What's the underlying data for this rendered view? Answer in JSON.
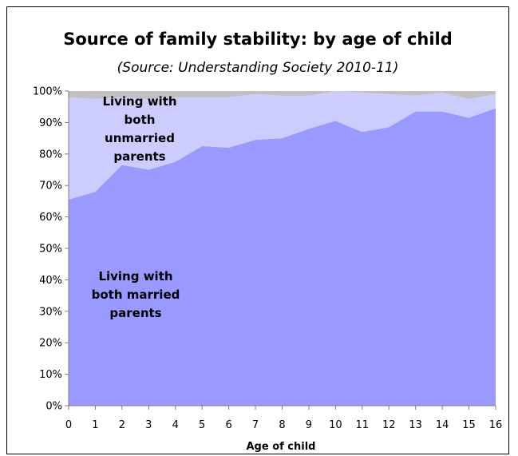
{
  "chart_data": {
    "type": "area",
    "stacked": true,
    "title": "Source of family stability: by age of child",
    "subtitle": "(Source: Understanding Society 2010-11)",
    "xlabel": "Age of child",
    "ylabel": "",
    "x": [
      0,
      1,
      2,
      3,
      4,
      5,
      6,
      7,
      8,
      9,
      10,
      11,
      12,
      13,
      14,
      15,
      16
    ],
    "ylim": [
      0,
      100
    ],
    "yticks": [
      "0%",
      "10%",
      "20%",
      "30%",
      "40%",
      "50%",
      "60%",
      "70%",
      "80%",
      "90%",
      "100%"
    ],
    "series": [
      {
        "values": [
          65.5,
          68,
          76.5,
          75,
          77.5,
          82.5,
          82,
          84.5,
          85,
          88,
          90.5,
          87,
          88.5,
          93.5,
          93.5,
          91.5,
          94.5
        ],
        "color": "#9999ff"
      },
      {
        "values": [
          32.5,
          29.5,
          21.5,
          22.5,
          20.5,
          15.5,
          16,
          14.5,
          13.5,
          10.5,
          9.5,
          12.5,
          10.5,
          5,
          6,
          6,
          4.5
        ],
        "color": "#ccccff"
      },
      {
        "values": [
          2,
          2.5,
          2,
          2.5,
          2,
          2,
          2,
          1,
          1.5,
          1.5,
          0,
          0.5,
          1,
          1.5,
          0.5,
          2.5,
          1
        ],
        "color": "#c0c0c0"
      }
    ],
    "annotations": [
      {
        "lines": [
          "Living with",
          "both",
          "unmarried",
          "parents"
        ]
      },
      {
        "lines": [
          "Living with",
          "both married",
          "parents"
        ]
      }
    ]
  }
}
